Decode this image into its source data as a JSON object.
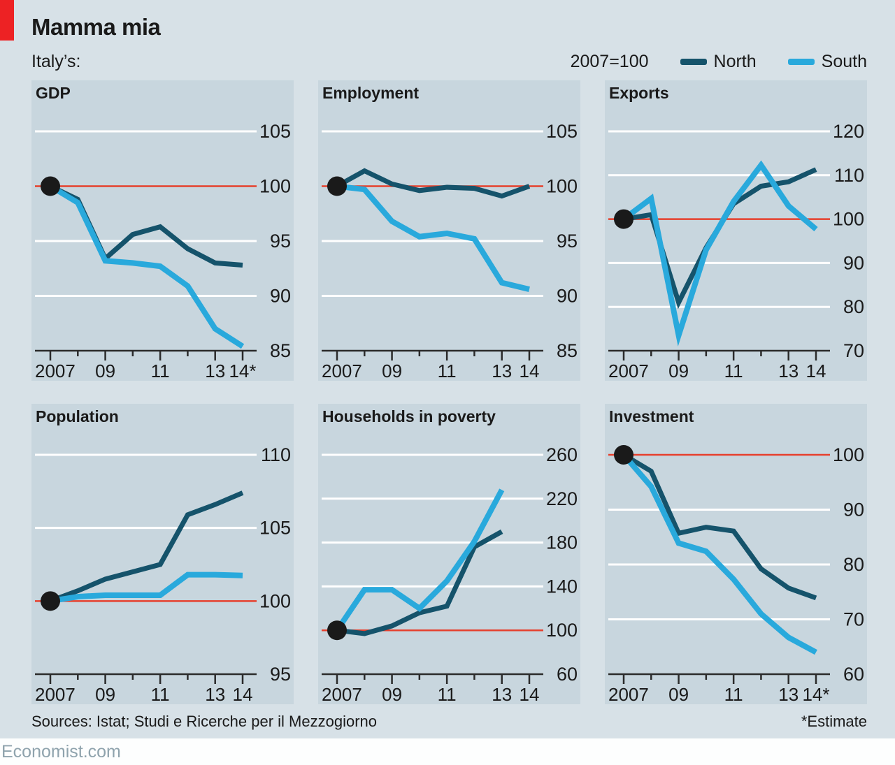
{
  "page": {
    "title": "Mamma mia",
    "subtitle": "Italy’s:",
    "footer": {
      "sources": "Sources: Istat; Studi e Ricerche per il Mezzogiorno",
      "estimate_note": "*Estimate",
      "site": "Economist.com"
    }
  },
  "legend": {
    "index_note": "2007=100",
    "items": [
      {
        "id": "north",
        "label": "North"
      },
      {
        "id": "south",
        "label": "South"
      }
    ]
  },
  "colors": {
    "north": "#15536b",
    "south": "#29a9dc",
    "baseline_red": "#e6402d",
    "page_bg": "#d7e1e7",
    "panel_bg": "#c8d6de",
    "brand_red": "#ed2224",
    "gridline": "#ffffff",
    "axis": "#2b2b2b",
    "text": "#1a1a1a",
    "site_text": "#8fa3ad",
    "start_dot": "#1a1a1a"
  },
  "chart_data": [
    {
      "type": "line",
      "title": "GDP",
      "x": [
        2007,
        2008,
        2009,
        2010,
        2011,
        2012,
        2013,
        2014
      ],
      "x_tick_labels": [
        {
          "label": "2007",
          "x": 2007
        },
        {
          "label": "09",
          "x": 2009
        },
        {
          "label": "11",
          "x": 2011
        },
        {
          "label": "13",
          "x": 2013
        },
        {
          "label": "14*",
          "x": 2014
        }
      ],
      "yticks": [
        85,
        90,
        95,
        100,
        105
      ],
      "baseline": 100,
      "series": [
        {
          "name": "North",
          "values": [
            100,
            98.8,
            93.4,
            95.6,
            96.3,
            94.3,
            93.0,
            92.8
          ]
        },
        {
          "name": "South",
          "values": [
            100,
            98.5,
            93.2,
            93.0,
            92.7,
            90.9,
            87.0,
            85.4
          ]
        }
      ],
      "start_dot": {
        "x": 2007,
        "value": 100
      }
    },
    {
      "type": "line",
      "title": "Employment",
      "x": [
        2007,
        2008,
        2009,
        2010,
        2011,
        2012,
        2013,
        2014
      ],
      "x_tick_labels": [
        {
          "label": "2007",
          "x": 2007
        },
        {
          "label": "09",
          "x": 2009
        },
        {
          "label": "11",
          "x": 2011
        },
        {
          "label": "13",
          "x": 2013
        },
        {
          "label": "14",
          "x": 2014
        }
      ],
      "yticks": [
        85,
        90,
        95,
        100,
        105
      ],
      "baseline": 100,
      "series": [
        {
          "name": "North",
          "values": [
            100,
            101.4,
            100.2,
            99.6,
            99.9,
            99.8,
            99.1,
            100.0
          ]
        },
        {
          "name": "South",
          "values": [
            100,
            99.7,
            96.8,
            95.4,
            95.7,
            95.2,
            91.2,
            90.6
          ]
        }
      ],
      "start_dot": {
        "x": 2007,
        "value": 100
      }
    },
    {
      "type": "line",
      "title": "Exports",
      "x": [
        2007,
        2008,
        2009,
        2010,
        2011,
        2012,
        2013,
        2014
      ],
      "x_tick_labels": [
        {
          "label": "2007",
          "x": 2007
        },
        {
          "label": "09",
          "x": 2009
        },
        {
          "label": "11",
          "x": 2011
        },
        {
          "label": "13",
          "x": 2013
        },
        {
          "label": "14",
          "x": 2014
        }
      ],
      "yticks": [
        70,
        80,
        90,
        100,
        110,
        120
      ],
      "baseline": 100,
      "series": [
        {
          "name": "North",
          "values": [
            100,
            101,
            81,
            93.5,
            103.5,
            107.5,
            108.5,
            111.3
          ]
        },
        {
          "name": "South",
          "values": [
            100,
            104.7,
            73.5,
            93,
            104,
            112.3,
            103,
            97.7
          ]
        }
      ],
      "start_dot": {
        "x": 2007,
        "value": 100
      }
    },
    {
      "type": "line",
      "title": "Population",
      "x": [
        2007,
        2008,
        2009,
        2010,
        2011,
        2012,
        2013,
        2014
      ],
      "x_tick_labels": [
        {
          "label": "2007",
          "x": 2007
        },
        {
          "label": "09",
          "x": 2009
        },
        {
          "label": "11",
          "x": 2011
        },
        {
          "label": "13",
          "x": 2013
        },
        {
          "label": "14",
          "x": 2014
        }
      ],
      "yticks": [
        95,
        100,
        105,
        110
      ],
      "baseline": 100,
      "series": [
        {
          "name": "North",
          "values": [
            100,
            100.7,
            101.5,
            102.0,
            102.5,
            105.9,
            106.6,
            107.4
          ]
        },
        {
          "name": "South",
          "values": [
            100,
            100.3,
            100.4,
            100.4,
            100.4,
            101.8,
            101.8,
            101.75
          ]
        }
      ],
      "start_dot": {
        "x": 2007,
        "value": 100
      }
    },
    {
      "type": "line",
      "title": "Households in poverty",
      "x": [
        2007,
        2008,
        2009,
        2010,
        2011,
        2012,
        2013
      ],
      "x_tick_labels": [
        {
          "label": "2007",
          "x": 2007
        },
        {
          "label": "09",
          "x": 2009
        },
        {
          "label": "11",
          "x": 2011
        },
        {
          "label": "13",
          "x": 2013
        },
        {
          "label": "14",
          "x": 2014
        }
      ],
      "yticks": [
        60,
        100,
        140,
        180,
        220,
        260
      ],
      "baseline": 100,
      "series": [
        {
          "name": "North",
          "values": [
            100,
            97,
            104,
            116,
            122,
            176,
            190
          ]
        },
        {
          "name": "South",
          "values": [
            100,
            137,
            137,
            120,
            145,
            181,
            228
          ]
        }
      ],
      "start_dot": {
        "x": 2007,
        "value": 100
      }
    },
    {
      "type": "line",
      "title": "Investment",
      "x": [
        2007,
        2008,
        2009,
        2010,
        2011,
        2012,
        2013,
        2014
      ],
      "x_tick_labels": [
        {
          "label": "2007",
          "x": 2007
        },
        {
          "label": "09",
          "x": 2009
        },
        {
          "label": "11",
          "x": 2011
        },
        {
          "label": "13",
          "x": 2013
        },
        {
          "label": "14*",
          "x": 2014
        }
      ],
      "yticks": [
        60,
        70,
        80,
        90,
        100
      ],
      "baseline": 100,
      "series": [
        {
          "name": "North",
          "values": [
            100,
            97,
            85.7,
            86.8,
            86.1,
            79.2,
            75.7,
            73.9
          ]
        },
        {
          "name": "South",
          "values": [
            100,
            94.2,
            83.9,
            82.4,
            77.3,
            71.0,
            66.7,
            64.0
          ]
        }
      ],
      "start_dot": {
        "x": 2007,
        "value": 100
      }
    }
  ]
}
